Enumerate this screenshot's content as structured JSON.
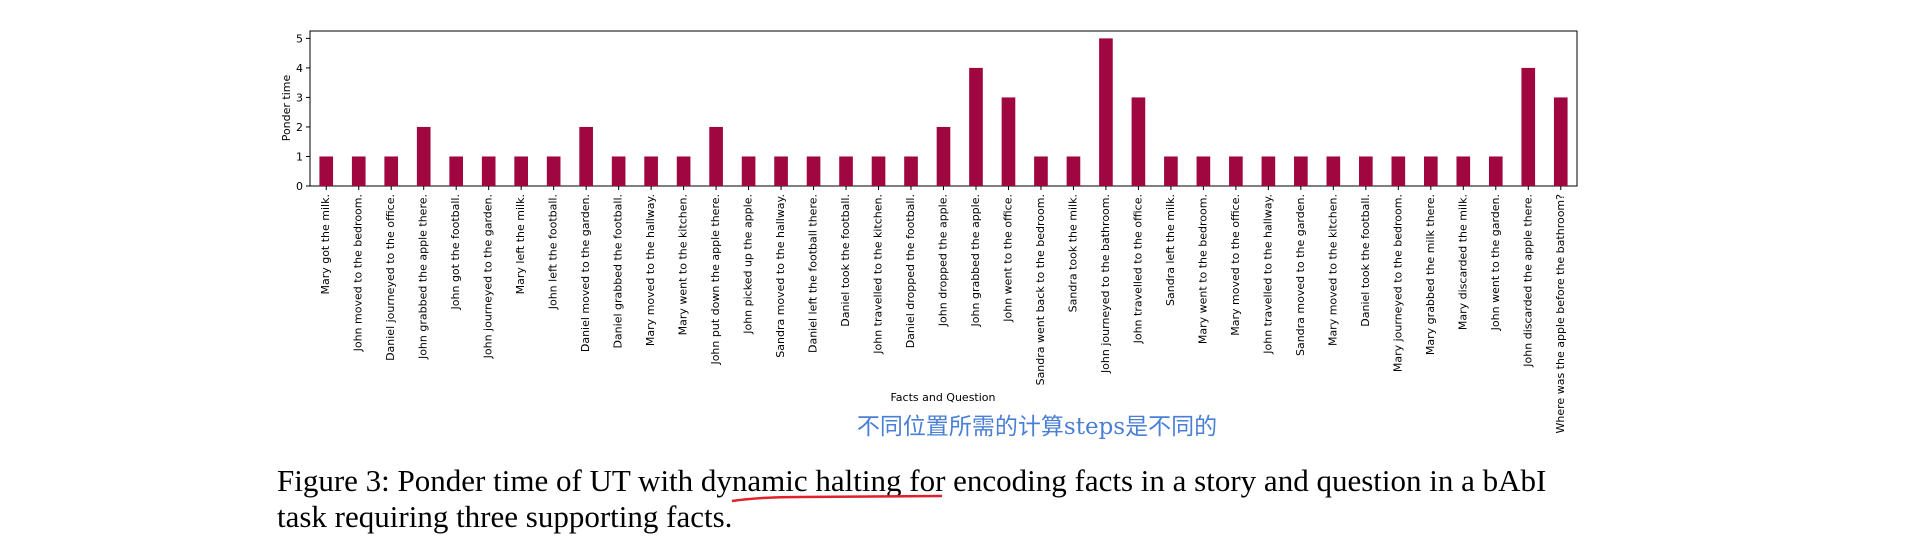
{
  "chart_data": {
    "type": "bar",
    "xlabel": "Facts and Question",
    "ylabel": "Ponder time",
    "categories": [
      "Mary got the milk.",
      "John moved to the bedroom.",
      "Daniel journeyed to the office.",
      "John grabbed the apple there.",
      "John got the football.",
      "John journeyed to the garden.",
      "Mary left the milk.",
      "John left the football.",
      "Daniel moved to the garden.",
      "Daniel grabbed the football.",
      "Mary moved to the hallway.",
      "Mary went to the kitchen.",
      "John put down the apple there.",
      "John picked up the apple.",
      "Sandra moved to the hallway.",
      "Daniel left the football there.",
      "Daniel took the football.",
      "John travelled to the kitchen.",
      "Daniel dropped the football.",
      "John dropped the apple.",
      "John grabbed the apple.",
      "John went to the office.",
      "Sandra went back to the bedroom.",
      "Sandra took the milk.",
      "John journeyed to the bathroom.",
      "John travelled to the office.",
      "Sandra left the milk.",
      "Mary went to the bedroom.",
      "Mary moved to the office.",
      "John travelled to the hallway.",
      "Sandra moved to the garden.",
      "Mary moved to the kitchen.",
      "Daniel took the football.",
      "Mary journeyed to the bedroom.",
      "Mary grabbed the milk there.",
      "Mary discarded the milk.",
      "John went to the garden.",
      "John discarded the apple there.",
      "Where was the apple before the bathroom?"
    ],
    "values": [
      1,
      1,
      1,
      2,
      1,
      1,
      1,
      1,
      2,
      1,
      1,
      1,
      2,
      1,
      1,
      1,
      1,
      1,
      1,
      2,
      4,
      3,
      1,
      1,
      5,
      3,
      1,
      1,
      1,
      1,
      1,
      1,
      1,
      1,
      1,
      1,
      1,
      4,
      3
    ],
    "color": "#a0063f",
    "ylim": [
      0,
      5.25
    ],
    "yticks": [
      0,
      1,
      2,
      3,
      4,
      5
    ],
    "grid": false,
    "annotation": "不同位置所需的计算steps是不同的",
    "caption": [
      "Figure 3: Ponder time of UT with dynamic halting for encoding facts in a story and question in a bAbI",
      "task requiring three supporting facts."
    ]
  }
}
